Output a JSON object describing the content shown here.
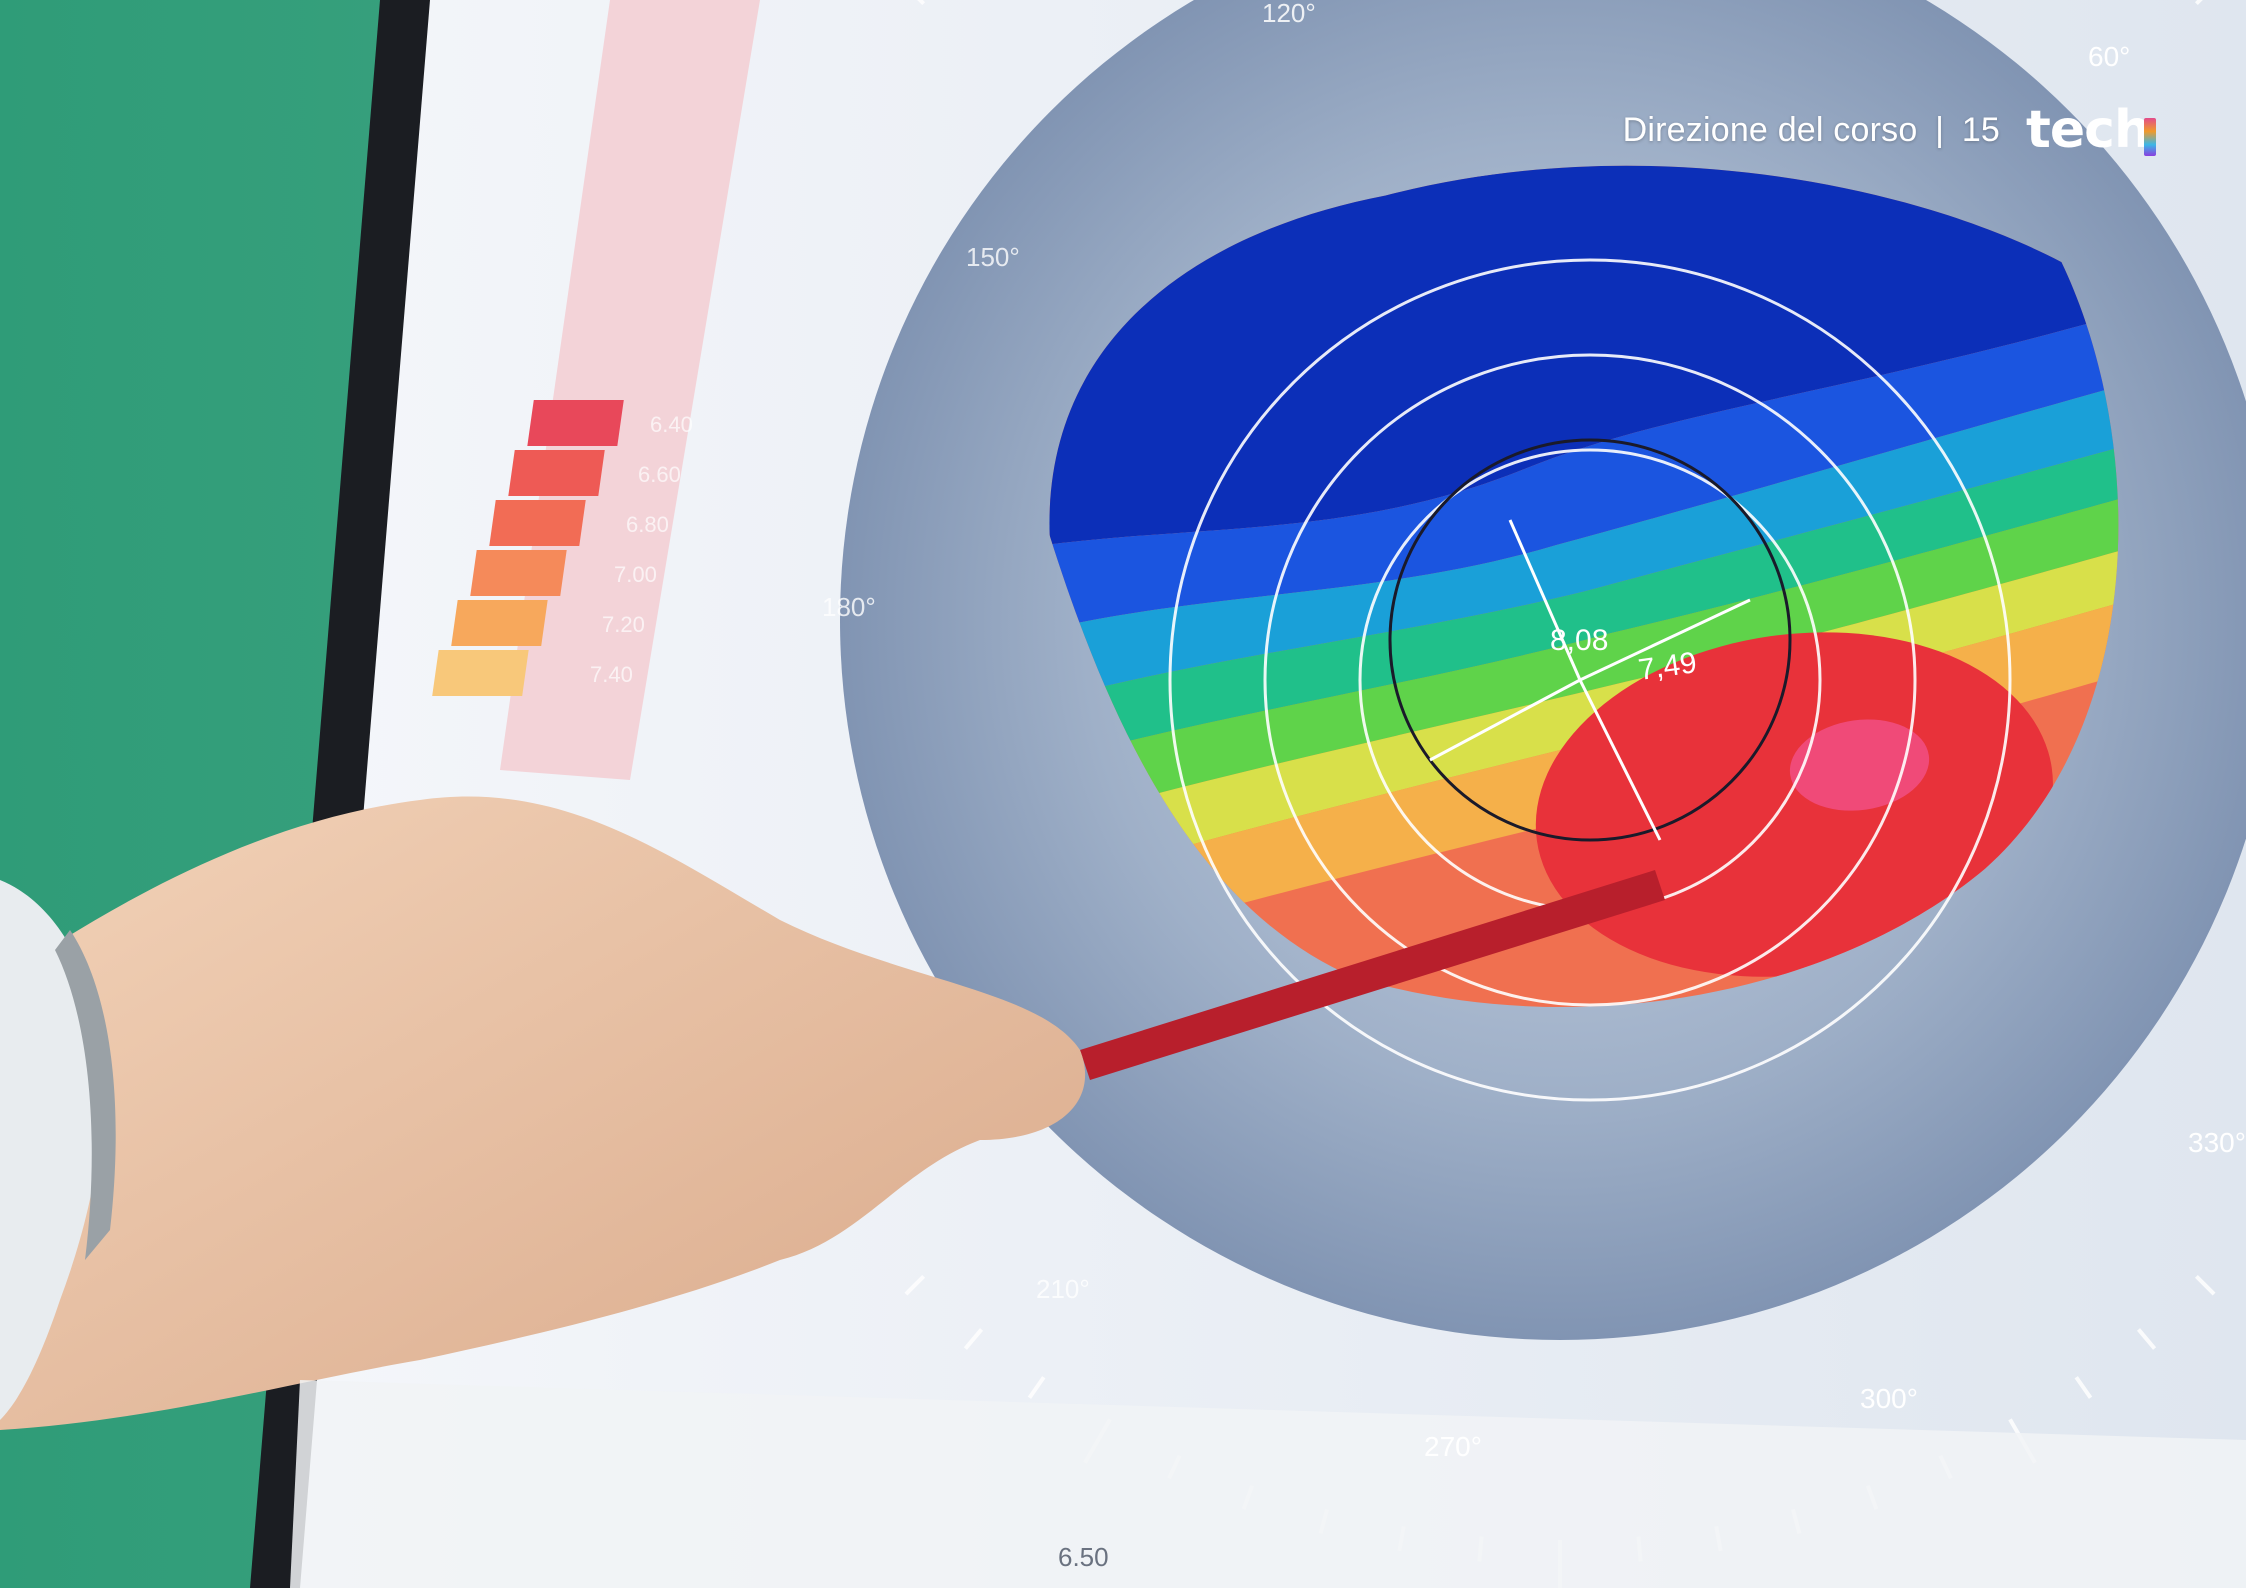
{
  "header": {
    "section": "Direzione del corso",
    "separator": "|",
    "page_number": "15",
    "logo_text": "tech"
  },
  "topography": {
    "center_value": "8,08",
    "secondary_value": "7,49",
    "degree_labels": [
      "120°",
      "60°",
      "150°",
      "180°",
      "210°",
      "270°",
      "300°",
      "330°"
    ]
  },
  "scale_legend": {
    "values": [
      "6.40",
      "6.60",
      "6.80",
      "7.00",
      "7.20",
      "7.40"
    ],
    "colors": [
      "#e8485a",
      "#ee5a55",
      "#f26c55",
      "#f58a5a",
      "#f7a85c",
      "#f8c87a"
    ]
  },
  "bottom_readout": {
    "value": "6.50"
  }
}
